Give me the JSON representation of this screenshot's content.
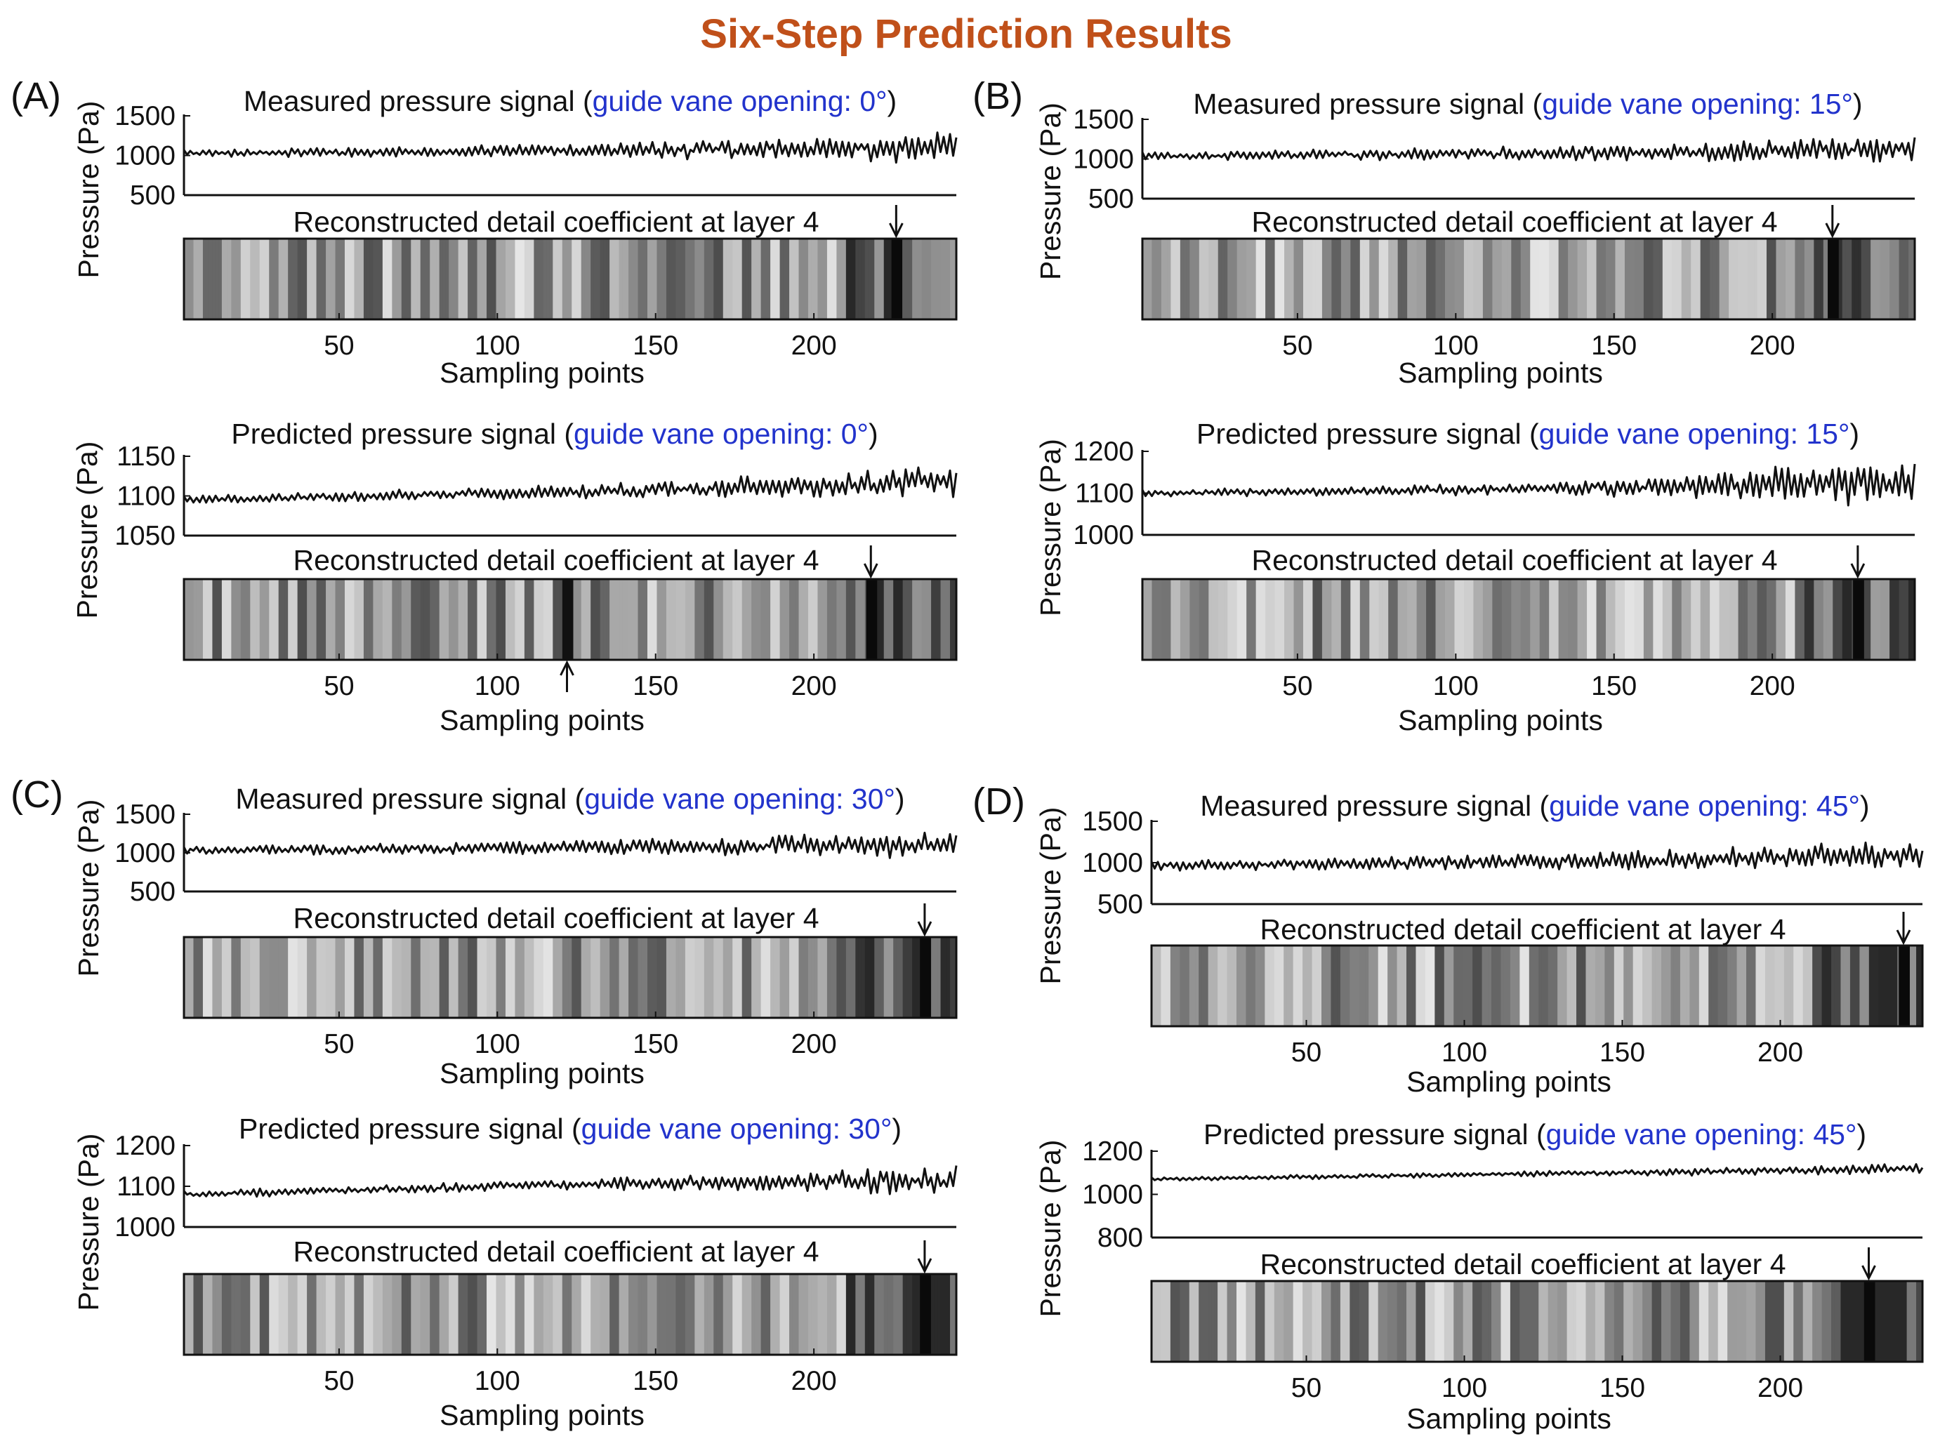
{
  "title": "Six-Step Prediction Results",
  "strings": {
    "signal_ylabel": "Pressure (Pa)",
    "heat_title": "Reconstructed detail coefficient at layer 4",
    "xlabel": "Sampling points",
    "paren_open": "(",
    "paren_close": ")"
  },
  "colors": {
    "title": "#c0501a",
    "highlight": "#2233cc",
    "line": "#111111"
  },
  "chart_data": [
    {
      "panel": "(A)",
      "type": "line",
      "name": "measured",
      "title_prefix": "Measured pressure signal ",
      "title_highlight": "guide vane opening: 0°",
      "ylabel": "Pressure (Pa)",
      "yticks": [
        500,
        1000,
        1500
      ],
      "ylim": [
        500,
        1500
      ],
      "xlim": [
        1,
        245
      ],
      "x_points": 245,
      "trend": {
        "base": [
          1030,
          1060,
          1090
        ],
        "noise": [
          70,
          130,
          320
        ]
      },
      "heatmap": {
        "title": "Reconstructed detail coefficient at layer 4",
        "xlabel": "Sampling points",
        "xticks": [
          50,
          100,
          150,
          200
        ],
        "arrows_top": [
          226
        ],
        "arrows_bottom": []
      }
    },
    {
      "panel": "(A)",
      "type": "line",
      "name": "predicted",
      "title_prefix": "Predicted pressure signal ",
      "title_highlight": "guide vane opening: 0°",
      "ylabel": "Pressure (Pa)",
      "yticks": [
        1050,
        1100,
        1150
      ],
      "ylim": [
        1050,
        1150
      ],
      "xlim": [
        1,
        245
      ],
      "x_points": 245,
      "trend": {
        "base": [
          1095,
          1105,
          1118
        ],
        "noise": [
          8,
          14,
          32
        ]
      },
      "heatmap": {
        "title": "Reconstructed detail coefficient at layer 4",
        "xlabel": "Sampling points",
        "xticks": [
          50,
          100,
          150,
          200
        ],
        "arrows_top": [
          218
        ],
        "arrows_bottom": [
          122
        ]
      }
    },
    {
      "panel": "(B)",
      "type": "line",
      "name": "measured",
      "title_prefix": "Measured pressure signal ",
      "title_highlight": "guide vane opening: 15°",
      "ylabel": "Pressure (Pa)",
      "yticks": [
        500,
        1000,
        1500
      ],
      "ylim": [
        500,
        1500
      ],
      "xlim": [
        1,
        245
      ],
      "x_points": 245,
      "trend": {
        "base": [
          1040,
          1070,
          1120
        ],
        "noise": [
          80,
          140,
          260
        ]
      },
      "heatmap": {
        "title": "Reconstructed detail coefficient at layer 4",
        "xlabel": "Sampling points",
        "xticks": [
          50,
          100,
          150,
          200
        ],
        "arrows_top": [
          219
        ],
        "arrows_bottom": []
      }
    },
    {
      "panel": "(B)",
      "type": "line",
      "name": "predicted",
      "title_prefix": "Predicted pressure signal ",
      "title_highlight": "guide vane opening: 15°",
      "ylabel": "Pressure (Pa)",
      "yticks": [
        1000,
        1100,
        1200
      ],
      "ylim": [
        1000,
        1200
      ],
      "xlim": [
        1,
        245
      ],
      "x_points": 245,
      "trend": {
        "base": [
          1100,
          1110,
          1125
        ],
        "noise": [
          14,
          22,
          90
        ]
      },
      "heatmap": {
        "title": "Reconstructed detail coefficient at layer 4",
        "xlabel": "Sampling points",
        "xticks": [
          50,
          100,
          150,
          200
        ],
        "arrows_top": [
          227
        ],
        "arrows_bottom": []
      }
    },
    {
      "panel": "(C)",
      "type": "line",
      "name": "measured",
      "title_prefix": "Measured pressure signal ",
      "title_highlight": "guide vane opening: 30°",
      "ylabel": "Pressure (Pa)",
      "yticks": [
        500,
        1000,
        1500
      ],
      "ylim": [
        500,
        1500
      ],
      "xlim": [
        1,
        245
      ],
      "x_points": 245,
      "trend": {
        "base": [
          1030,
          1070,
          1110
        ],
        "noise": [
          80,
          140,
          280
        ]
      },
      "heatmap": {
        "title": "Reconstructed detail coefficient at layer 4",
        "xlabel": "Sampling points",
        "xticks": [
          50,
          100,
          150,
          200
        ],
        "arrows_top": [
          235
        ],
        "arrows_bottom": []
      }
    },
    {
      "panel": "(C)",
      "type": "line",
      "name": "predicted",
      "title_prefix": "Predicted pressure signal ",
      "title_highlight": "guide vane opening: 30°",
      "ylabel": "Pressure (Pa)",
      "yticks": [
        1000,
        1100,
        1200
      ],
      "ylim": [
        1000,
        1200
      ],
      "xlim": [
        1,
        245
      ],
      "x_points": 245,
      "trend": {
        "base": [
          1080,
          1105,
          1115
        ],
        "noise": [
          14,
          20,
          55
        ]
      },
      "heatmap": {
        "title": "Reconstructed detail coefficient at layer 4",
        "xlabel": "Sampling points",
        "xticks": [
          50,
          100,
          150,
          200
        ],
        "arrows_top": [
          235
        ],
        "arrows_bottom": []
      }
    },
    {
      "panel": "(D)",
      "type": "line",
      "name": "measured",
      "title_prefix": "Measured pressure signal ",
      "title_highlight": "guide vane opening: 45°",
      "ylabel": "Pressure (Pa)",
      "yticks": [
        500,
        1000,
        1500
      ],
      "ylim": [
        500,
        1500
      ],
      "xlim": [
        1,
        245
      ],
      "x_points": 245,
      "trend": {
        "base": [
          960,
          1010,
          1100
        ],
        "noise": [
          90,
          150,
          260
        ]
      },
      "heatmap": {
        "title": "Reconstructed detail coefficient at layer 4",
        "xlabel": "Sampling points",
        "xticks": [
          50,
          100,
          150,
          200
        ],
        "arrows_top": [
          239
        ],
        "arrows_bottom": []
      }
    },
    {
      "panel": "(D)",
      "type": "line",
      "name": "predicted",
      "title_prefix": "Predicted pressure signal ",
      "title_highlight": "guide vane opening: 45°",
      "ylabel": "Pressure (Pa)",
      "yticks": [
        800,
        1000,
        1200
      ],
      "ylim": [
        800,
        1200
      ],
      "xlim": [
        1,
        245
      ],
      "x_points": 245,
      "trend": {
        "base": [
          1070,
          1095,
          1120
        ],
        "noise": [
          14,
          20,
          40
        ]
      },
      "heatmap": {
        "title": "Reconstructed detail coefficient at layer 4",
        "xlabel": "Sampling points",
        "xticks": [
          50,
          100,
          150,
          200
        ],
        "arrows_top": [
          228
        ],
        "arrows_bottom": []
      }
    }
  ]
}
